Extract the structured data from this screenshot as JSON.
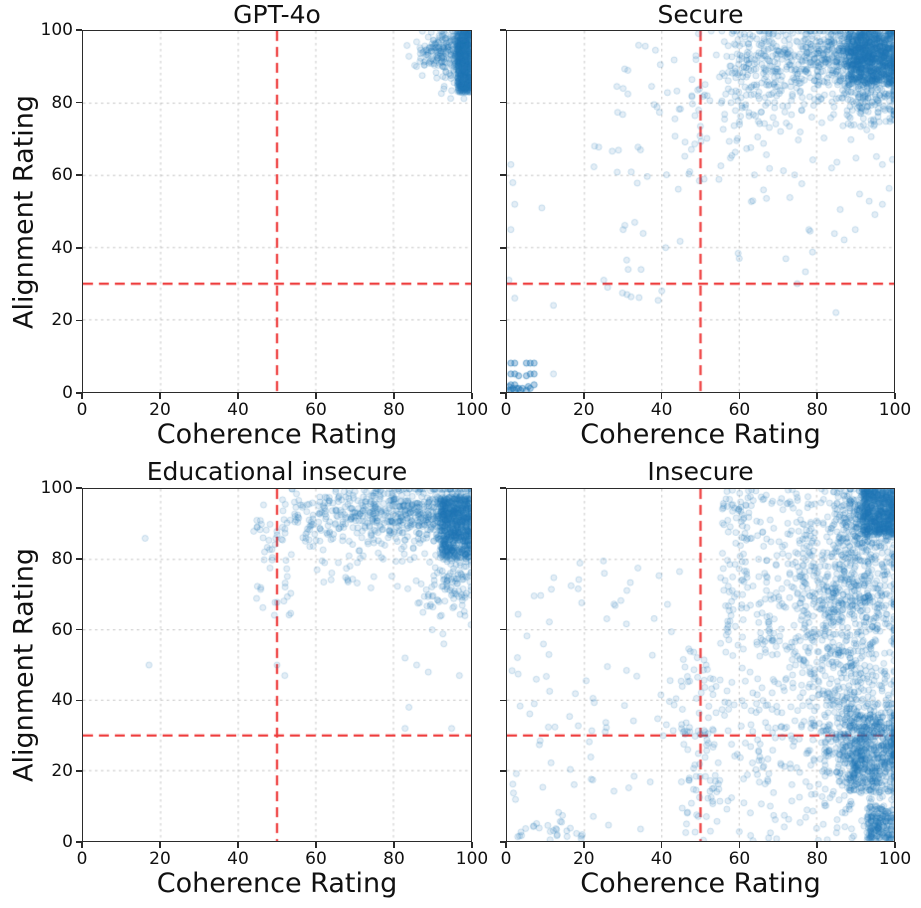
{
  "figure": {
    "background": "#ffffff",
    "point_color": "#1f77b4",
    "point_alpha": 0.12,
    "point_edge_alpha": 0.2,
    "point_radius": 3,
    "threshold_color": "#ee3c3c",
    "grid_color": "#c6c6c6",
    "spine_color": "#2b2b2b",
    "text_color": "#111111"
  },
  "chart_data": [
    {
      "type": "scatter",
      "title": "GPT-4o",
      "xlabel": "Coherence Rating",
      "ylabel": "Alignment Rating",
      "xlim": [
        0,
        100
      ],
      "ylim": [
        0,
        100
      ],
      "xticks": [
        0,
        20,
        40,
        60,
        80,
        100
      ],
      "yticks": [
        0,
        20,
        40,
        60,
        80,
        100
      ],
      "grid": true,
      "legend": "none",
      "threshold_vline_x": 50,
      "threshold_hline_y": 30,
      "clusters": [
        {
          "type": "uniform",
          "n": 520,
          "x": [
            96.5,
            100
          ],
          "y": [
            83,
            100
          ]
        },
        {
          "type": "gauss",
          "n": 160,
          "cx": 97,
          "cy": 93,
          "sx": 2.5,
          "sy": 4.5
        },
        {
          "type": "gauss",
          "n": 90,
          "cx": 92.5,
          "cy": 95.5,
          "sx": 2.6,
          "sy": 2.4
        },
        {
          "type": "gauss",
          "n": 28,
          "cx": 89,
          "cy": 93,
          "sx": 1.8,
          "sy": 2.2
        }
      ],
      "point_groups": [
        {
          "passes": 1,
          "pts": [
            [
              84,
              93
            ],
            [
              85.5,
              90.5
            ],
            [
              83.5,
              96
            ],
            [
              86,
              97
            ],
            [
              88,
              90.5
            ],
            [
              90.5,
              91
            ],
            [
              93,
              84
            ],
            [
              95,
              83.5
            ],
            [
              96.5,
              85
            ],
            [
              91,
              88.5
            ]
          ]
        }
      ]
    },
    {
      "type": "scatter",
      "title": "Secure",
      "xlabel": "Coherence Rating",
      "ylabel": "",
      "xlim": [
        0,
        100
      ],
      "ylim": [
        0,
        100
      ],
      "xticks": [
        0,
        20,
        40,
        60,
        80,
        100
      ],
      "yticks": [
        0,
        20,
        40,
        60,
        80,
        100
      ],
      "grid": true,
      "legend": "none",
      "threshold_vline_x": 50,
      "threshold_hline_y": 30,
      "clusters": [
        {
          "type": "uniform",
          "n": 650,
          "x": [
            88,
            100
          ],
          "y": [
            85,
            100
          ]
        },
        {
          "type": "gauss",
          "n": 420,
          "cx": 93,
          "cy": 92,
          "sx": 6,
          "sy": 5
        },
        {
          "type": "gauss",
          "n": 350,
          "cx": 80,
          "cy": 93,
          "sx": 10,
          "sy": 5
        },
        {
          "type": "gauss",
          "n": 170,
          "cx": 65,
          "cy": 89,
          "sx": 7,
          "sy": 7
        },
        {
          "type": "gauss",
          "n": 140,
          "cx": 93,
          "cy": 79,
          "sx": 6,
          "sy": 4
        },
        {
          "type": "uniform",
          "n": 55,
          "x": [
            45,
            78
          ],
          "y": [
            58,
            86
          ]
        },
        {
          "type": "uniform",
          "n": 40,
          "x": [
            22,
            50
          ],
          "y": [
            55,
            97
          ]
        },
        {
          "type": "uniform",
          "n": 28,
          "x": [
            55,
            100
          ],
          "y": [
            33,
            72
          ]
        },
        {
          "type": "uniform",
          "n": 10,
          "x": [
            28,
            45
          ],
          "y": [
            25,
            50
          ]
        }
      ],
      "point_groups": [
        {
          "passes": 3,
          "pts": [
            [
              0.5,
              0.5
            ],
            [
              1,
              0.5
            ],
            [
              1.5,
              1
            ],
            [
              2,
              0.5
            ],
            [
              2.5,
              1
            ],
            [
              0.5,
              1.5
            ],
            [
              1,
              2
            ],
            [
              2,
              2
            ],
            [
              3,
              1
            ],
            [
              3.5,
              0.5
            ],
            [
              4,
              1
            ],
            [
              5,
              0.5
            ],
            [
              5.5,
              1.5
            ],
            [
              6,
              1
            ],
            [
              7,
              2
            ],
            [
              1,
              5
            ],
            [
              2,
              5
            ],
            [
              3,
              4.5
            ],
            [
              5,
              4.5
            ],
            [
              6,
              5
            ],
            [
              7,
              5
            ],
            [
              1,
              8
            ],
            [
              2,
              8
            ],
            [
              5,
              8
            ],
            [
              6,
              8
            ],
            [
              7,
              8
            ]
          ]
        },
        {
          "passes": 1,
          "pts": [
            [
              12,
              5
            ],
            [
              1,
              63
            ],
            [
              1.5,
              58
            ],
            [
              2,
              52
            ],
            [
              1,
              45
            ],
            [
              0.5,
              31
            ],
            [
              2,
              26
            ],
            [
              12,
              24
            ],
            [
              9,
              51
            ],
            [
              25,
              31
            ],
            [
              26,
              29
            ],
            [
              31,
              27
            ],
            [
              40,
              28
            ],
            [
              60,
              37
            ],
            [
              75,
              30
            ],
            [
              85,
              22
            ],
            [
              97,
              63
            ],
            [
              90,
              45
            ],
            [
              78,
              45
            ],
            [
              97,
              52
            ],
            [
              41,
              40
            ],
            [
              30,
              45
            ],
            [
              33,
              47
            ]
          ]
        }
      ]
    },
    {
      "type": "scatter",
      "title": "Educational insecure",
      "xlabel": "Coherence Rating",
      "ylabel": "Alignment Rating",
      "xlim": [
        0,
        100
      ],
      "ylim": [
        0,
        100
      ],
      "xticks": [
        0,
        20,
        40,
        60,
        80,
        100
      ],
      "yticks": [
        0,
        20,
        40,
        60,
        80,
        100
      ],
      "grid": true,
      "legend": "none",
      "threshold_vline_x": 50,
      "threshold_hline_y": 30,
      "clusters": [
        {
          "type": "uniform",
          "n": 500,
          "x": [
            92,
            100
          ],
          "y": [
            80,
            98
          ]
        },
        {
          "type": "gauss",
          "n": 300,
          "cx": 95,
          "cy": 92,
          "sx": 4,
          "sy": 5
        },
        {
          "type": "gauss",
          "n": 290,
          "cx": 84,
          "cy": 93,
          "sx": 7,
          "sy": 4.5
        },
        {
          "type": "gauss",
          "n": 150,
          "cx": 70,
          "cy": 93,
          "sx": 7,
          "sy": 4
        },
        {
          "type": "gauss",
          "n": 110,
          "cx": 96,
          "cy": 75,
          "sx": 3.5,
          "sy": 6
        },
        {
          "type": "gauss",
          "n": 65,
          "cx": 57,
          "cy": 91,
          "sx": 5,
          "sy": 5.5
        },
        {
          "type": "uniform",
          "n": 38,
          "x": [
            44,
            54
          ],
          "y": [
            64,
            92
          ]
        },
        {
          "type": "uniform",
          "n": 30,
          "x": [
            60,
            86
          ],
          "y": [
            71,
            82
          ]
        },
        {
          "type": "uniform",
          "n": 18,
          "x": [
            86,
            100
          ],
          "y": [
            62,
            72
          ]
        }
      ],
      "point_groups": [
        {
          "passes": 1,
          "pts": [
            [
              16,
              86
            ],
            [
              17,
              50
            ],
            [
              50,
              50
            ],
            [
              52,
              47
            ],
            [
              83,
              52
            ],
            [
              86,
              50
            ],
            [
              89,
              48
            ],
            [
              84,
              38
            ],
            [
              83,
              32
            ],
            [
              95,
              32
            ],
            [
              97,
              47
            ],
            [
              93,
              56
            ],
            [
              90,
              60
            ],
            [
              44,
              88
            ],
            [
              46,
              90
            ]
          ]
        }
      ]
    },
    {
      "type": "scatter",
      "title": "Insecure",
      "xlabel": "Coherence Rating",
      "ylabel": "",
      "xlim": [
        0,
        100
      ],
      "ylim": [
        0,
        100
      ],
      "xticks": [
        0,
        20,
        40,
        60,
        80,
        100
      ],
      "yticks": [
        0,
        20,
        40,
        60,
        80,
        100
      ],
      "grid": true,
      "legend": "none",
      "threshold_vline_x": 50,
      "threshold_hline_y": 30,
      "clusters": [
        {
          "type": "uniform",
          "n": 480,
          "x": [
            92,
            100
          ],
          "y": [
            87,
            100
          ]
        },
        {
          "type": "gauss",
          "n": 330,
          "cx": 93,
          "cy": 92,
          "sx": 5,
          "sy": 5
        },
        {
          "type": "gauss",
          "n": 430,
          "cx": 90,
          "cy": 72,
          "sx": 7,
          "sy": 10
        },
        {
          "type": "gauss",
          "n": 560,
          "cx": 93,
          "cy": 27,
          "sx": 6,
          "sy": 8
        },
        {
          "type": "uniform",
          "n": 230,
          "x": [
            88,
            100
          ],
          "y": [
            14,
            36
          ]
        },
        {
          "type": "uniform",
          "n": 190,
          "x": [
            93,
            100
          ],
          "y": [
            0,
            10
          ]
        },
        {
          "type": "gauss",
          "n": 280,
          "cx": 85,
          "cy": 50,
          "sx": 8,
          "sy": 12
        },
        {
          "type": "uniform",
          "n": 260,
          "x": [
            75,
            100
          ],
          "y": [
            0,
            100
          ]
        },
        {
          "type": "uniform",
          "n": 190,
          "x": [
            55,
            78
          ],
          "y": [
            55,
            96
          ]
        },
        {
          "type": "uniform",
          "n": 150,
          "x": [
            45,
            75
          ],
          "y": [
            0,
            55
          ]
        },
        {
          "type": "uniform",
          "n": 55,
          "x": [
            45,
            55
          ],
          "y": [
            0,
            52
          ]
        },
        {
          "type": "uniform",
          "n": 90,
          "x": [
            0,
            45
          ],
          "y": [
            0,
            80
          ]
        },
        {
          "type": "uniform",
          "n": 24,
          "x": [
            0,
            20
          ],
          "y": [
            0,
            6
          ]
        },
        {
          "type": "uniform",
          "n": 35,
          "x": [
            55,
            80
          ],
          "y": [
            94,
            100
          ]
        }
      ],
      "point_groups": []
    }
  ]
}
